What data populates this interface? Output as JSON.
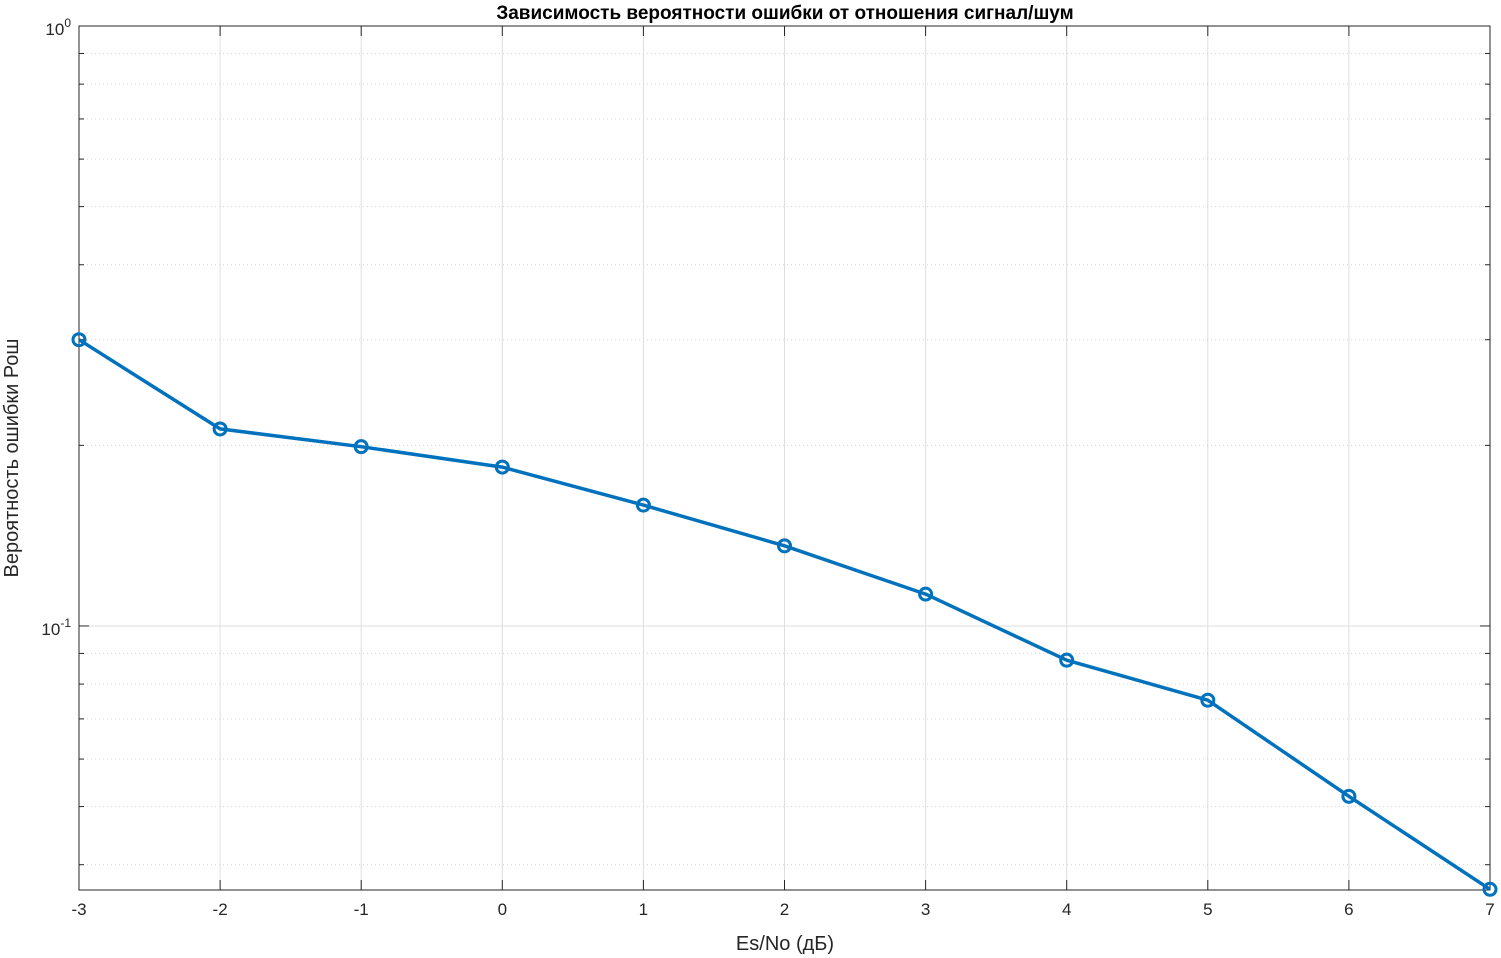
{
  "chart_data": {
    "type": "line",
    "title": "Зависимость вероятности ошибки от отношения сигнал/шум",
    "xlabel": "Es/No (дБ)",
    "ylabel": "Вероятность ошибки Рош",
    "xscale": "linear",
    "yscale": "log",
    "xlim": [
      -3,
      7
    ],
    "ylim": [
      0.0363,
      1
    ],
    "xticks": [
      -3,
      -2,
      -1,
      0,
      1,
      2,
      3,
      4,
      5,
      6,
      7
    ],
    "yticks": [
      {
        "value": 1,
        "base": "10",
        "exponent": "0"
      },
      {
        "value": 0.1,
        "base": "10",
        "exponent": "-1"
      }
    ],
    "grid": true,
    "minor_grid": true,
    "color": "#0072BD",
    "marker": "circle",
    "x": [
      -3,
      -2,
      -1,
      0,
      1,
      2,
      3,
      4,
      5,
      6,
      7
    ],
    "values": [
      0.3,
      0.213,
      0.199,
      0.184,
      0.159,
      0.136,
      0.113,
      0.0877,
      0.0752,
      0.052,
      0.0364
    ]
  }
}
